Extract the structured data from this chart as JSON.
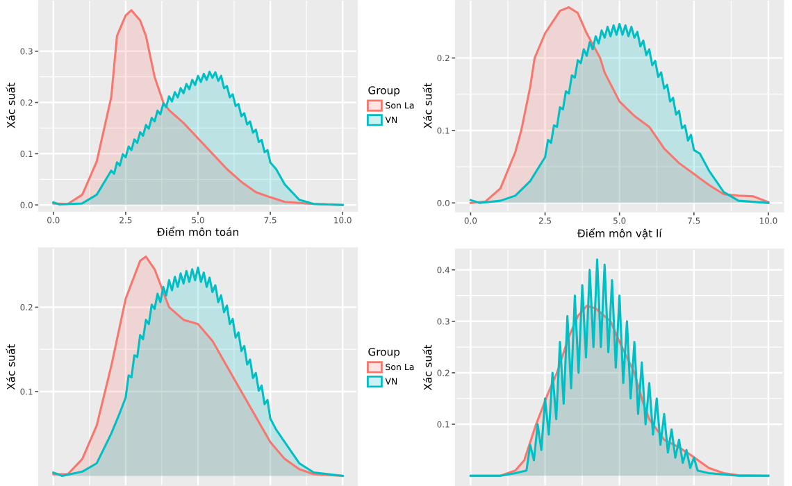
{
  "chart_data": [
    {
      "type": "area",
      "xlabel": "Điểm môn toán",
      "ylabel": "Xác suất",
      "legend_title": "Group",
      "legend": "right",
      "grid": true,
      "xlim": [
        -0.5,
        10.5
      ],
      "xticks": [
        {
          "value": 0,
          "label": "0.0"
        },
        2.5,
        {
          "value": 5,
          "label": "5.0"
        },
        7.5,
        {
          "value": 10,
          "label": "10.0"
        }
      ],
      "ylim": [
        -0.012,
        0.4
      ],
      "yticks": [
        {
          "value": 0,
          "label": "0.0"
        },
        0.1,
        0.2,
        0.3
      ],
      "series": [
        {
          "name": "Son La",
          "color": "#f8766d",
          "x": [
            0,
            0.5,
            1,
            1.5,
            2,
            2.2,
            2.5,
            2.7,
            3,
            3.2,
            3.5,
            3.8,
            4,
            4.5,
            5,
            5.5,
            6,
            6.5,
            7,
            7.5,
            8,
            9,
            10
          ],
          "values": [
            0.003,
            0.002,
            0.02,
            0.085,
            0.21,
            0.33,
            0.37,
            0.38,
            0.36,
            0.33,
            0.25,
            0.2,
            0.185,
            0.16,
            0.13,
            0.1,
            0.07,
            0.045,
            0.025,
            0.015,
            0.006,
            0.002,
            0
          ]
        },
        {
          "name": "VN",
          "color": "#00bfc4",
          "x": [
            0,
            0.2,
            1,
            1.5,
            2.0,
            2.1,
            2.2,
            2.3,
            2.4,
            2.5,
            2.6,
            2.7,
            2.8,
            2.9,
            3.0,
            3.1,
            3.2,
            3.3,
            3.4,
            3.5,
            3.6,
            3.7,
            3.8,
            3.9,
            4.0,
            4.1,
            4.2,
            4.3,
            4.4,
            4.5,
            4.6,
            4.7,
            4.8,
            4.9,
            5.0,
            5.1,
            5.2,
            5.3,
            5.4,
            5.5,
            5.6,
            5.7,
            5.8,
            5.9,
            6.0,
            6.1,
            6.2,
            6.3,
            6.4,
            6.5,
            6.6,
            6.7,
            6.8,
            6.9,
            7.0,
            7.1,
            7.2,
            7.3,
            7.4,
            7.5,
            7.7,
            8,
            8.5,
            9,
            10
          ],
          "values": [
            0.005,
            0.001,
            0.003,
            0.02,
            0.067,
            0.061,
            0.083,
            0.077,
            0.099,
            0.093,
            0.114,
            0.107,
            0.128,
            0.121,
            0.142,
            0.135,
            0.156,
            0.149,
            0.17,
            0.163,
            0.184,
            0.177,
            0.198,
            0.191,
            0.212,
            0.202,
            0.22,
            0.21,
            0.228,
            0.218,
            0.236,
            0.226,
            0.244,
            0.234,
            0.252,
            0.24,
            0.256,
            0.244,
            0.26,
            0.248,
            0.259,
            0.242,
            0.252,
            0.228,
            0.232,
            0.21,
            0.216,
            0.193,
            0.197,
            0.173,
            0.179,
            0.157,
            0.163,
            0.141,
            0.147,
            0.123,
            0.127,
            0.103,
            0.107,
            0.083,
            0.07,
            0.04,
            0.01,
            0.002,
            0
          ]
        }
      ]
    },
    {
      "type": "area",
      "xlabel": "Điểm môn vật lí",
      "ylabel": "Xác suất",
      "grid": true,
      "xlim": [
        -0.5,
        10.5
      ],
      "xticks": [
        {
          "value": 0,
          "label": "0.0"
        },
        2.5,
        {
          "value": 5,
          "label": "5.0"
        },
        7.5,
        {
          "value": 10,
          "label": "10.0"
        }
      ],
      "ylim": [
        -0.012,
        0.28
      ],
      "yticks": [
        {
          "value": 0,
          "label": "0.0"
        },
        0.1,
        0.2
      ],
      "series": [
        {
          "color": "#f8766d",
          "x": [
            0,
            0.5,
            1,
            1.5,
            1.7,
            2,
            2.15,
            2.5,
            3,
            3.3,
            3.6,
            3.9,
            4.35,
            4.5,
            5,
            5.5,
            6,
            6.5,
            7,
            7.5,
            8,
            8.5,
            9,
            9.5,
            10
          ],
          "values": [
            0,
            0.002,
            0.02,
            0.07,
            0.1,
            0.16,
            0.2,
            0.234,
            0.265,
            0.27,
            0.262,
            0.234,
            0.2,
            0.18,
            0.14,
            0.12,
            0.105,
            0.075,
            0.055,
            0.04,
            0.025,
            0.012,
            0.01,
            0.009,
            0.001
          ]
        },
        {
          "color": "#00bfc4",
          "x": [
            0,
            0.3,
            1,
            1.5,
            2,
            2.3,
            2.5,
            2.6,
            2.7,
            2.8,
            2.9,
            3.0,
            3.1,
            3.2,
            3.3,
            3.4,
            3.5,
            3.6,
            3.7,
            3.8,
            3.9,
            4.0,
            4.1,
            4.2,
            4.3,
            4.4,
            4.5,
            4.6,
            4.7,
            4.8,
            4.9,
            5.0,
            5.1,
            5.2,
            5.3,
            5.4,
            5.5,
            5.6,
            5.7,
            5.8,
            5.9,
            6.0,
            6.1,
            6.2,
            6.3,
            6.4,
            6.5,
            6.6,
            6.7,
            6.8,
            6.9,
            7.0,
            7.1,
            7.2,
            7.3,
            7.4,
            7.5,
            7.7,
            8,
            8.5,
            9,
            10
          ],
          "values": [
            0.004,
            0,
            0.003,
            0.01,
            0.03,
            0.05,
            0.063,
            0.087,
            0.083,
            0.107,
            0.105,
            0.132,
            0.129,
            0.154,
            0.151,
            0.176,
            0.173,
            0.197,
            0.193,
            0.212,
            0.203,
            0.222,
            0.212,
            0.23,
            0.22,
            0.238,
            0.228,
            0.243,
            0.23,
            0.245,
            0.232,
            0.247,
            0.232,
            0.245,
            0.23,
            0.243,
            0.228,
            0.236,
            0.216,
            0.224,
            0.204,
            0.212,
            0.19,
            0.196,
            0.174,
            0.18,
            0.158,
            0.163,
            0.14,
            0.145,
            0.122,
            0.127,
            0.103,
            0.107,
            0.086,
            0.094,
            0.073,
            0.068,
            0.045,
            0.015,
            0.003,
            0
          ]
        }
      ]
    },
    {
      "type": "area",
      "ylabel": "Xác suất",
      "legend_title": "Group",
      "legend": "right",
      "grid": true,
      "tick_labels": "y",
      "xlim": [
        -0.5,
        10.5
      ],
      "xticks": [
        0,
        2.5,
        5,
        7.5,
        10
      ],
      "ylim": [
        -0.012,
        0.27
      ],
      "yticks": [
        0.1,
        0.2
      ],
      "series": [
        {
          "name": "Son La",
          "color": "#f8766d",
          "x": [
            0,
            0.5,
            1,
            1.5,
            2,
            2.5,
            3,
            3.2,
            3.5,
            4,
            4.5,
            5,
            5.5,
            6,
            6.5,
            7,
            7.5,
            8,
            8.5,
            9,
            10
          ],
          "values": [
            0.002,
            0.002,
            0.02,
            0.06,
            0.13,
            0.21,
            0.255,
            0.26,
            0.245,
            0.2,
            0.185,
            0.18,
            0.16,
            0.13,
            0.1,
            0.07,
            0.04,
            0.02,
            0.008,
            0.002,
            0
          ]
        },
        {
          "name": "VN",
          "color": "#00bfc4",
          "x": [
            0,
            0.3,
            1,
            1.5,
            2,
            2.3,
            2.5,
            2.6,
            2.7,
            2.8,
            2.9,
            3.0,
            3.1,
            3.2,
            3.3,
            3.4,
            3.5,
            3.6,
            3.7,
            3.8,
            3.9,
            4.0,
            4.1,
            4.2,
            4.3,
            4.4,
            4.5,
            4.6,
            4.7,
            4.8,
            4.9,
            5.0,
            5.1,
            5.2,
            5.3,
            5.4,
            5.5,
            5.6,
            5.7,
            5.8,
            5.9,
            6.0,
            6.1,
            6.2,
            6.3,
            6.4,
            6.5,
            6.6,
            6.7,
            6.8,
            6.9,
            7.0,
            7.1,
            7.2,
            7.3,
            7.4,
            7.5,
            7.7,
            8,
            8.5,
            9,
            10
          ],
          "values": [
            0.004,
            0,
            0.005,
            0.015,
            0.05,
            0.075,
            0.093,
            0.119,
            0.117,
            0.143,
            0.141,
            0.167,
            0.162,
            0.185,
            0.18,
            0.203,
            0.198,
            0.216,
            0.206,
            0.224,
            0.214,
            0.232,
            0.22,
            0.236,
            0.224,
            0.24,
            0.228,
            0.243,
            0.23,
            0.245,
            0.232,
            0.247,
            0.23,
            0.241,
            0.224,
            0.235,
            0.218,
            0.226,
            0.206,
            0.214,
            0.194,
            0.202,
            0.18,
            0.186,
            0.164,
            0.17,
            0.148,
            0.154,
            0.132,
            0.138,
            0.116,
            0.122,
            0.101,
            0.107,
            0.085,
            0.09,
            0.068,
            0.055,
            0.04,
            0.015,
            0.004,
            0
          ]
        }
      ]
    },
    {
      "type": "area",
      "ylabel": "Xác suất",
      "grid": true,
      "tick_labels": "y",
      "xlim": [
        -0.5,
        10.5
      ],
      "xticks": [
        0,
        2.5,
        5,
        7.5,
        10
      ],
      "ylim": [
        -0.02,
        0.44
      ],
      "yticks": [
        0.1,
        0.2,
        0.3,
        0.4
      ],
      "series": [
        {
          "color": "#f8766d",
          "x": [
            0,
            1,
            1.5,
            1.8,
            2.2,
            2.6,
            2.9,
            3.3,
            3.6,
            3.9,
            4.2,
            4.7,
            5,
            5.5,
            5.8,
            6,
            6.5,
            7,
            7.4,
            8,
            8.5,
            9,
            10
          ],
          "values": [
            0,
            0,
            0.01,
            0.03,
            0.1,
            0.16,
            0.2,
            0.27,
            0.31,
            0.33,
            0.325,
            0.3,
            0.26,
            0.2,
            0.14,
            0.11,
            0.07,
            0.055,
            0.04,
            0.015,
            0.005,
            0.001,
            0
          ]
        },
        {
          "color": "#00bfc4",
          "x": [
            0,
            1,
            1.5,
            1.875,
            2,
            2.125,
            2.25,
            2.375,
            2.5,
            2.625,
            2.75,
            2.875,
            3,
            3.125,
            3.25,
            3.375,
            3.5,
            3.625,
            3.75,
            3.875,
            4,
            4.125,
            4.25,
            4.375,
            4.5,
            4.625,
            4.75,
            4.875,
            5,
            5.125,
            5.25,
            5.375,
            5.5,
            5.625,
            5.75,
            5.875,
            6,
            6.125,
            6.25,
            6.375,
            6.5,
            6.625,
            6.75,
            6.875,
            7,
            7.125,
            7.25,
            7.375,
            7.5,
            7.625,
            8,
            9,
            10
          ],
          "values": [
            0,
            0,
            0.005,
            0.01,
            0.06,
            0.03,
            0.1,
            0.05,
            0.15,
            0.08,
            0.2,
            0.11,
            0.26,
            0.14,
            0.31,
            0.17,
            0.35,
            0.2,
            0.37,
            0.23,
            0.4,
            0.25,
            0.42,
            0.25,
            0.41,
            0.24,
            0.38,
            0.21,
            0.35,
            0.18,
            0.3,
            0.15,
            0.26,
            0.12,
            0.22,
            0.1,
            0.18,
            0.08,
            0.15,
            0.06,
            0.12,
            0.045,
            0.09,
            0.035,
            0.07,
            0.025,
            0.05,
            0.015,
            0.035,
            0.01,
            0.005,
            0,
            0
          ]
        }
      ]
    }
  ]
}
